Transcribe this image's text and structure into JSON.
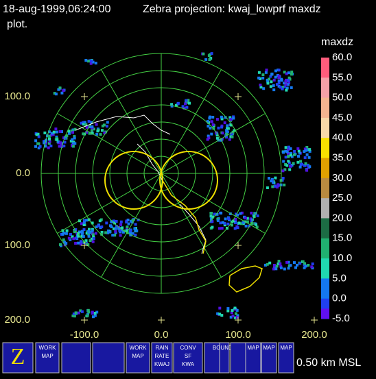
{
  "header": {
    "time": "18-aug-1999,06:24:00",
    "title": "Zebra projection: kwaj_lowprf maxdz",
    "title_end": "plot."
  },
  "axes": {
    "y_labels": [
      "100.0",
      "0.0",
      "100.0",
      "200.0"
    ],
    "x_labels": [
      "-100.0",
      "0.0",
      "100.0",
      "200.0"
    ]
  },
  "colorbar": {
    "label": "maxdz",
    "ticks": [
      "60.0",
      "55.0",
      "50.0",
      "45.0",
      "40.0",
      "35.0",
      "30.0",
      "25.0",
      "20.0",
      "15.0",
      "10.0",
      "5.0",
      "0.0",
      "-5.0"
    ],
    "colors": [
      "#ff5c7c",
      "#f4a0a8",
      "#f4b490",
      "#f8d8a8",
      "#f8e000",
      "#e0a000",
      "#b88a40",
      "#b0b0b0",
      "#1c6c44",
      "#20b070",
      "#20d8b0",
      "#1478f0",
      "#2040f0"
    ]
  },
  "toolbar": {
    "buttons": [
      "WORK",
      "MAP",
      "WORK",
      "MAP",
      "RAIN",
      "RATE",
      "KWAJ",
      "CONV",
      "SF",
      "KWA",
      "BOUNDS",
      "MAP",
      "MAP",
      "MAP"
    ]
  },
  "altitude": "0.50 km MSL"
}
